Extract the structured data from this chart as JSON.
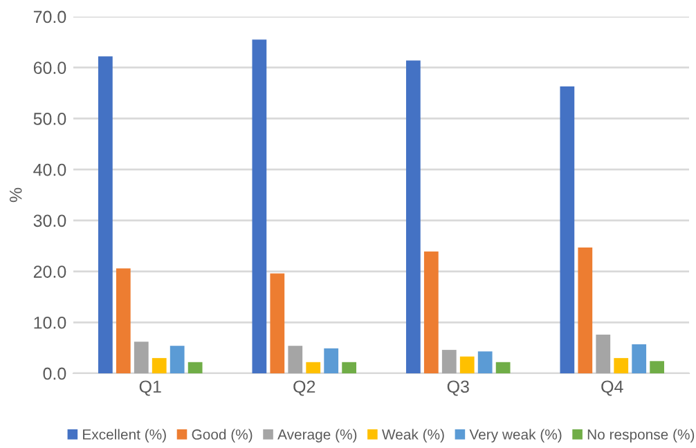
{
  "chart_data": {
    "type": "bar",
    "ylabel": "%",
    "categories": [
      "Q1",
      "Q2",
      "Q3",
      "Q4"
    ],
    "series": [
      {
        "name": "Excellent (%)",
        "color": "#4472c4",
        "values": [
          62.2,
          65.5,
          61.4,
          56.3
        ]
      },
      {
        "name": "Good (%)",
        "color": "#ed7d31",
        "values": [
          20.6,
          19.6,
          23.9,
          24.7
        ]
      },
      {
        "name": "Average (%)",
        "color": "#a5a5a5",
        "values": [
          6.2,
          5.4,
          4.6,
          7.6
        ]
      },
      {
        "name": "Weak (%)",
        "color": "#ffc000",
        "values": [
          3.0,
          2.2,
          3.3,
          3.0
        ]
      },
      {
        "name": "Very weak (%)",
        "color": "#5b9bd5",
        "values": [
          5.4,
          4.9,
          4.3,
          5.7
        ]
      },
      {
        "name": "No response (%)",
        "color": "#70ad47",
        "values": [
          2.2,
          2.2,
          2.2,
          2.4
        ]
      }
    ],
    "ylim": [
      0,
      70
    ],
    "yticks": [
      {
        "value": 0,
        "label": "0.0"
      },
      {
        "value": 10,
        "label": "10.0"
      },
      {
        "value": 20,
        "label": "20.0"
      },
      {
        "value": 30,
        "label": "30.0"
      },
      {
        "value": 40,
        "label": "40.0"
      },
      {
        "value": 50,
        "label": "50.0"
      },
      {
        "value": 60,
        "label": "60.0"
      },
      {
        "value": 70,
        "label": "70.0"
      }
    ],
    "grid": "y",
    "legend": "bottom"
  }
}
